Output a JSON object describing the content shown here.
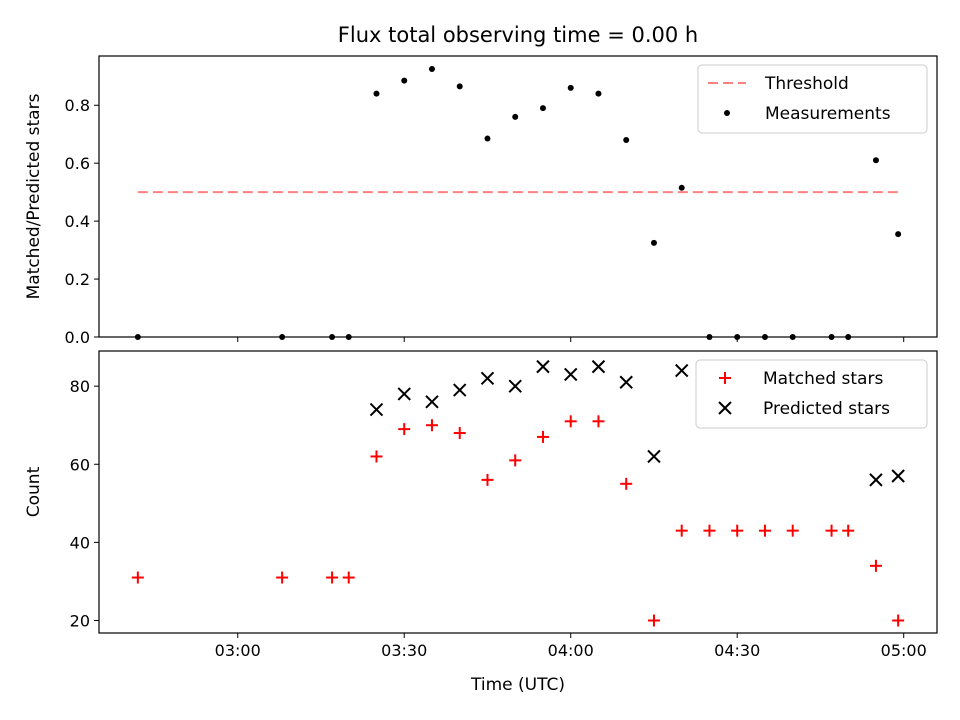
{
  "chart_data": {
    "title": "Flux total observing time = 0.00 h",
    "xlabel": "Time (UTC)",
    "x_ticks": [
      "03:00",
      "03:30",
      "04:00",
      "04:30",
      "05:00"
    ],
    "x_range": [
      "02:35",
      "05:06"
    ],
    "panels": [
      {
        "type": "scatter",
        "ylabel": "Matched/Predicted stars",
        "ylim": [
          0,
          0.97
        ],
        "y_ticks": [
          "0.0",
          "0.2",
          "0.4",
          "0.6",
          "0.8"
        ],
        "legend_position": "top-right",
        "threshold": {
          "name": "Threshold",
          "value": 0.5,
          "x_start": "02:42",
          "x_end": "04:59",
          "color": "#ff8080",
          "style": "dashed"
        },
        "series": [
          {
            "name": "Measurements",
            "color": "#000000",
            "marker": "dot",
            "points": [
              {
                "x": "02:42",
                "y": 0.0
              },
              {
                "x": "03:08",
                "y": 0.0
              },
              {
                "x": "03:17",
                "y": 0.0
              },
              {
                "x": "03:20",
                "y": 0.0
              },
              {
                "x": "03:25",
                "y": 0.84
              },
              {
                "x": "03:30",
                "y": 0.885
              },
              {
                "x": "03:35",
                "y": 0.925
              },
              {
                "x": "03:40",
                "y": 0.865
              },
              {
                "x": "03:45",
                "y": 0.685
              },
              {
                "x": "03:50",
                "y": 0.76
              },
              {
                "x": "03:55",
                "y": 0.79
              },
              {
                "x": "04:00",
                "y": 0.86
              },
              {
                "x": "04:05",
                "y": 0.84
              },
              {
                "x": "04:10",
                "y": 0.68
              },
              {
                "x": "04:15",
                "y": 0.325
              },
              {
                "x": "04:20",
                "y": 0.515
              },
              {
                "x": "04:25",
                "y": 0.0
              },
              {
                "x": "04:30",
                "y": 0.0
              },
              {
                "x": "04:35",
                "y": 0.0
              },
              {
                "x": "04:40",
                "y": 0.0
              },
              {
                "x": "04:47",
                "y": 0.0
              },
              {
                "x": "04:50",
                "y": 0.0
              },
              {
                "x": "04:55",
                "y": 0.61
              },
              {
                "x": "04:59",
                "y": 0.355
              }
            ]
          }
        ]
      },
      {
        "type": "scatter",
        "ylabel": "Count",
        "ylim": [
          16.8,
          89
        ],
        "y_ticks": [
          "20",
          "40",
          "60",
          "80"
        ],
        "legend_position": "top-right",
        "series": [
          {
            "name": "Matched stars",
            "color": "#ff0000",
            "marker": "plus",
            "points": [
              {
                "x": "02:42",
                "y": 31
              },
              {
                "x": "03:08",
                "y": 31
              },
              {
                "x": "03:17",
                "y": 31
              },
              {
                "x": "03:20",
                "y": 31
              },
              {
                "x": "03:25",
                "y": 62
              },
              {
                "x": "03:30",
                "y": 69
              },
              {
                "x": "03:35",
                "y": 70
              },
              {
                "x": "03:40",
                "y": 68
              },
              {
                "x": "03:45",
                "y": 56
              },
              {
                "x": "03:50",
                "y": 61
              },
              {
                "x": "03:55",
                "y": 67
              },
              {
                "x": "04:00",
                "y": 71
              },
              {
                "x": "04:05",
                "y": 71
              },
              {
                "x": "04:10",
                "y": 55
              },
              {
                "x": "04:15",
                "y": 20
              },
              {
                "x": "04:20",
                "y": 43
              },
              {
                "x": "04:25",
                "y": 43
              },
              {
                "x": "04:30",
                "y": 43
              },
              {
                "x": "04:35",
                "y": 43
              },
              {
                "x": "04:40",
                "y": 43
              },
              {
                "x": "04:47",
                "y": 43
              },
              {
                "x": "04:50",
                "y": 43
              },
              {
                "x": "04:55",
                "y": 34
              },
              {
                "x": "04:59",
                "y": 20
              }
            ]
          },
          {
            "name": "Predicted stars",
            "color": "#000000",
            "marker": "x",
            "points": [
              {
                "x": "03:25",
                "y": 74
              },
              {
                "x": "03:30",
                "y": 78
              },
              {
                "x": "03:35",
                "y": 76
              },
              {
                "x": "03:40",
                "y": 79
              },
              {
                "x": "03:45",
                "y": 82
              },
              {
                "x": "03:50",
                "y": 80
              },
              {
                "x": "03:55",
                "y": 85
              },
              {
                "x": "04:00",
                "y": 83
              },
              {
                "x": "04:05",
                "y": 85
              },
              {
                "x": "04:10",
                "y": 81
              },
              {
                "x": "04:15",
                "y": 62
              },
              {
                "x": "04:20",
                "y": 84
              },
              {
                "x": "04:55",
                "y": 56
              },
              {
                "x": "04:59",
                "y": 57
              }
            ]
          }
        ]
      }
    ]
  }
}
